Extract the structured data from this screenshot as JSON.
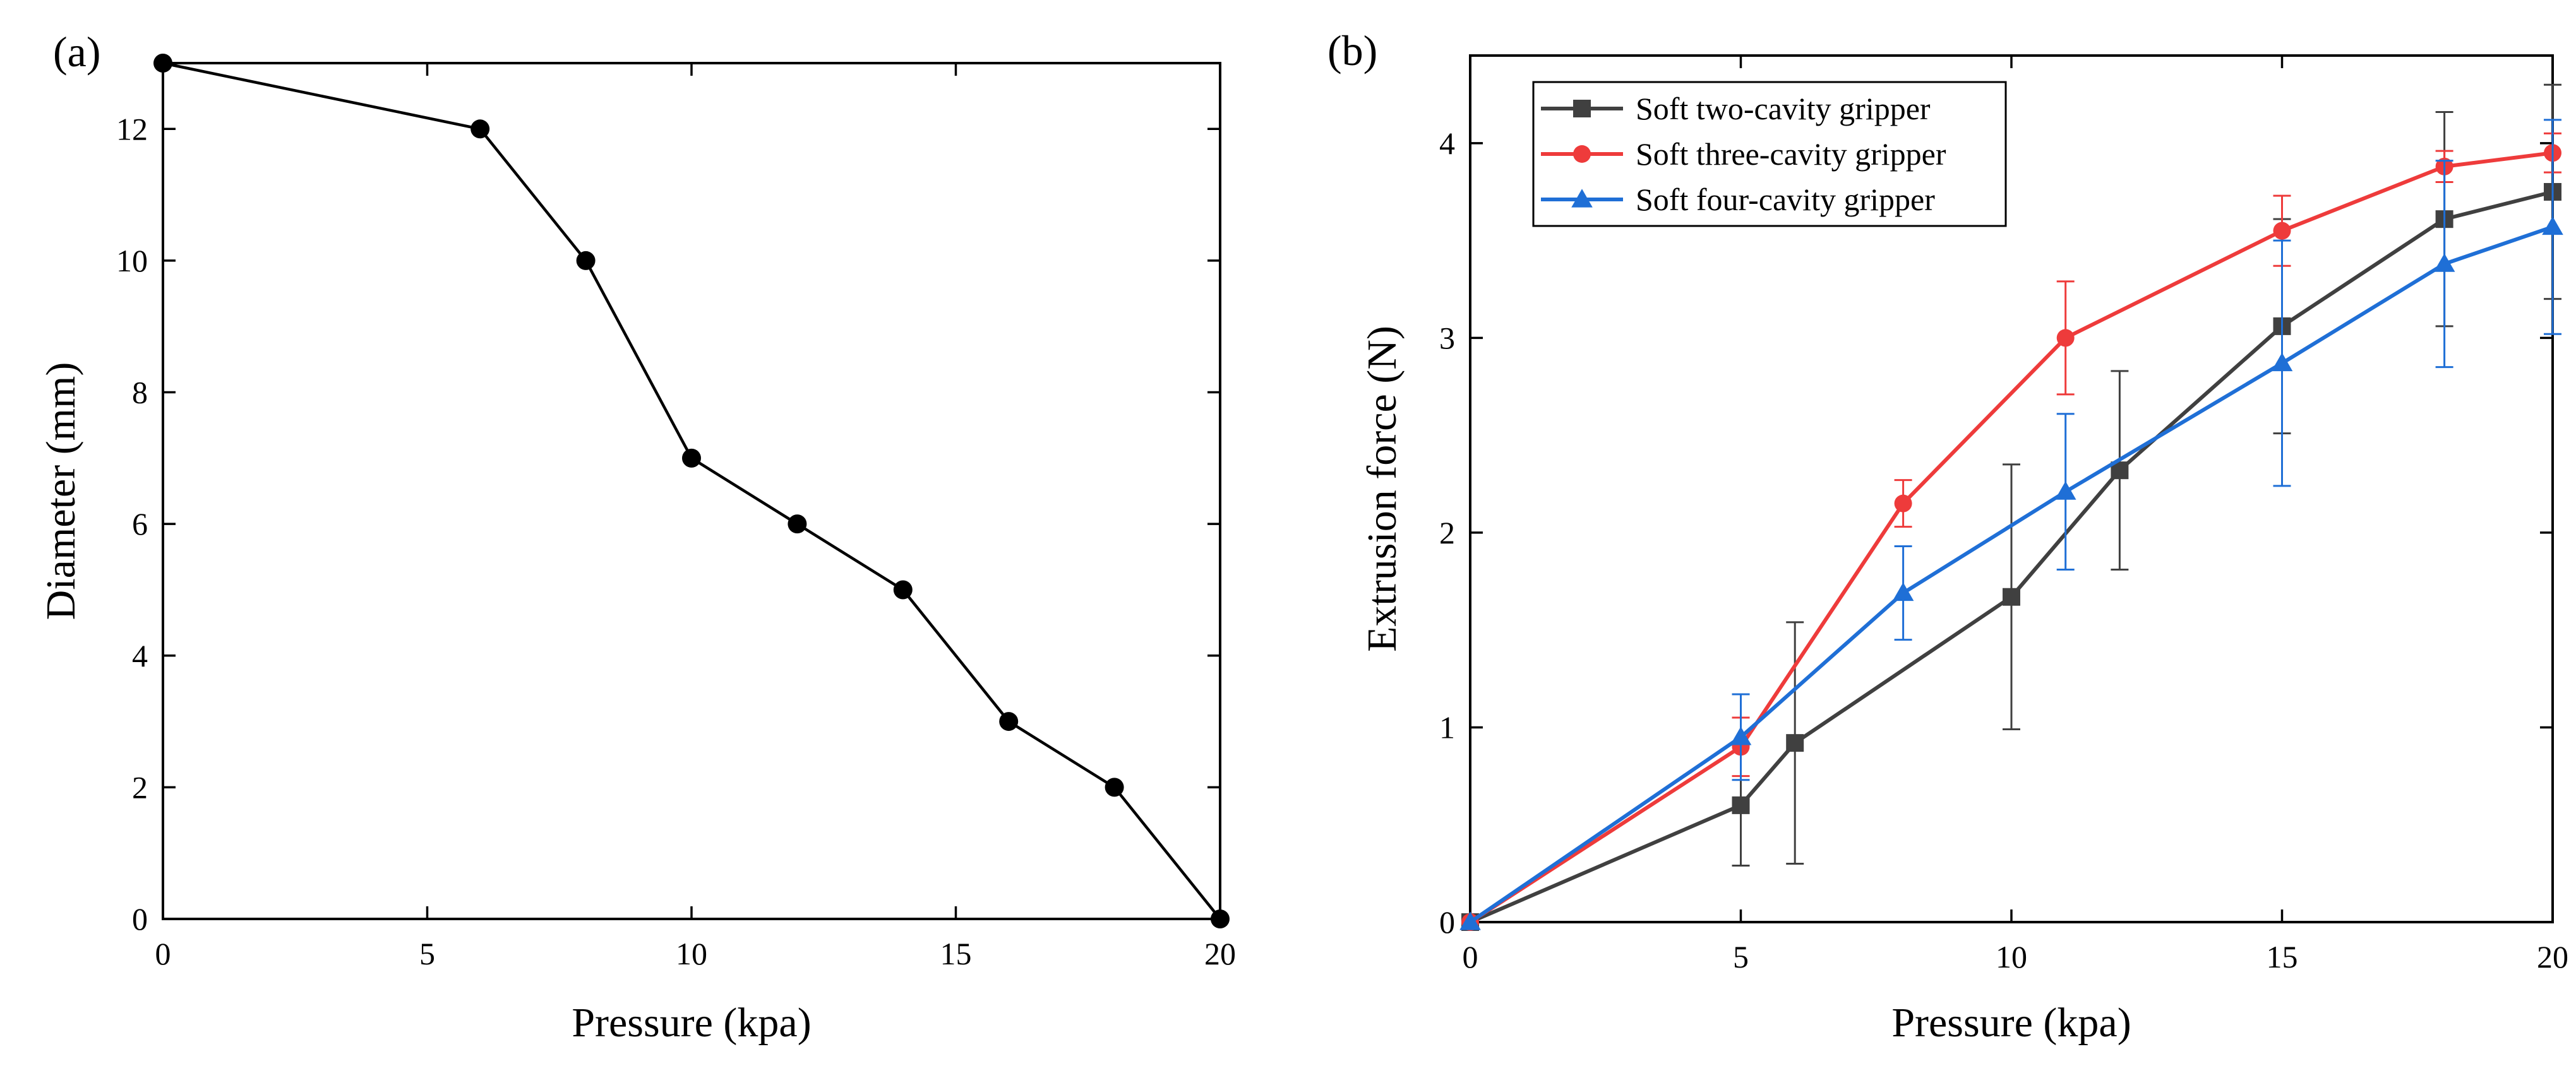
{
  "chart_data": [
    {
      "panel_label": "(a)",
      "type": "line",
      "title": "",
      "xlabel": "Pressure (kpa)",
      "ylabel": "Diameter (mm)",
      "xlim": [
        0,
        20
      ],
      "ylim": [
        0,
        13
      ],
      "xticks": [
        0,
        5,
        10,
        15,
        20
      ],
      "yticks": [
        0,
        2,
        4,
        6,
        8,
        10,
        12
      ],
      "grid": false,
      "series": [
        {
          "name": "Diameter",
          "color": "#000000",
          "marker": "circle",
          "x": [
            0,
            6,
            8,
            10,
            12,
            14,
            16,
            18,
            20
          ],
          "y": [
            13,
            12,
            10,
            7,
            6,
            5,
            3,
            2,
            0
          ]
        }
      ]
    },
    {
      "panel_label": "(b)",
      "type": "line",
      "title": "",
      "xlabel": "Pressure (kpa)",
      "ylabel": "Extrusion force (N)",
      "xlim": [
        0,
        20
      ],
      "ylim": [
        0,
        4.45
      ],
      "xticks": [
        0,
        5,
        10,
        15,
        20
      ],
      "yticks": [
        0,
        1,
        2,
        3,
        4
      ],
      "grid": false,
      "legend_position": "top-left",
      "series": [
        {
          "name": "Soft two-cavity gripper",
          "color": "#404040",
          "marker": "square",
          "x": [
            0,
            5,
            6,
            10,
            12,
            15,
            18,
            20
          ],
          "y": [
            0,
            0.6,
            0.92,
            1.67,
            2.32,
            3.06,
            3.61,
            3.75
          ],
          "yerr": [
            0,
            0.31,
            0.62,
            0.68,
            0.51,
            0.55,
            0.55,
            0.55
          ]
        },
        {
          "name": "Soft three-cavity gripper",
          "color": "#ee3b3b",
          "marker": "circle",
          "x": [
            0,
            5,
            8,
            11,
            15,
            18,
            20
          ],
          "y": [
            0,
            0.9,
            2.15,
            3.0,
            3.55,
            3.88,
            3.95
          ],
          "yerr": [
            0,
            0.15,
            0.12,
            0.29,
            0.18,
            0.08,
            0.1
          ]
        },
        {
          "name": "Soft four-cavity gripper",
          "color": "#1f6fd6",
          "marker": "triangle",
          "x": [
            0,
            5,
            8,
            11,
            15,
            18,
            20
          ],
          "y": [
            0,
            0.95,
            1.69,
            2.21,
            2.87,
            3.38,
            3.57
          ],
          "yerr": [
            0,
            0.22,
            0.24,
            0.4,
            0.63,
            0.53,
            0.55
          ]
        }
      ]
    }
  ]
}
